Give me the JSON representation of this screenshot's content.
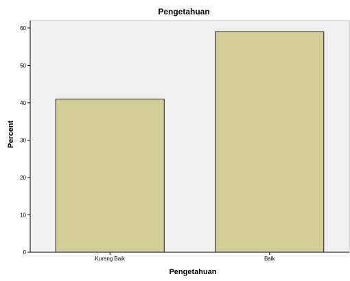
{
  "chart_data": {
    "type": "bar",
    "title": "Pengetahuan",
    "xlabel": "Pengetahuan",
    "ylabel": "Percent",
    "categories": [
      "Kurang Baik",
      "Baik"
    ],
    "values": [
      41,
      59
    ],
    "ylim": [
      0,
      62
    ],
    "yticks": [
      0,
      10,
      20,
      30,
      40,
      50,
      60
    ],
    "grid": false,
    "legend": "none",
    "colors": {
      "bar_fill": "#d3ce98",
      "bar_stroke": "#1a1a1a",
      "plot_background": "#f0f0f0",
      "axis": "#000000"
    }
  }
}
